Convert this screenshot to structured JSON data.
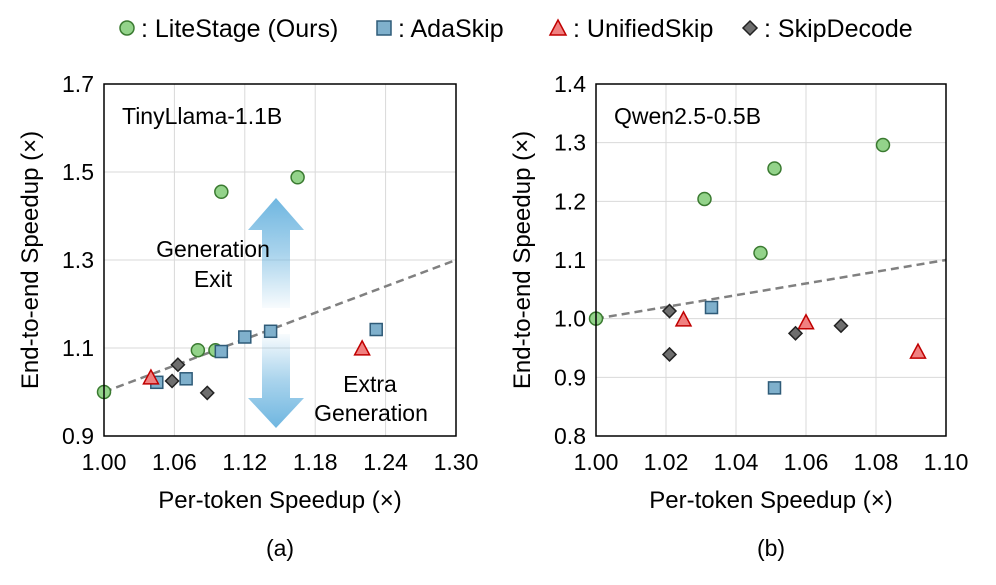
{
  "legend": {
    "items": [
      {
        "label": ": LiteStage (Ours)",
        "marker": "circle",
        "fill": "#93d38a",
        "stroke": "#3a7a30"
      },
      {
        "label": ": AdaSkip",
        "marker": "square",
        "fill": "#7fb0cc",
        "stroke": "#2f5b78"
      },
      {
        "label": ": UnifiedSkip",
        "marker": "triangle",
        "fill": "#f08080",
        "stroke": "#c00000"
      },
      {
        "label": ": SkipDecode",
        "marker": "diamond",
        "fill": "#6e6e6e",
        "stroke": "#222222"
      }
    ]
  },
  "colors": {
    "grid": "#d9d9d9",
    "trend": "#808080",
    "arrow": "#6fb6e0"
  },
  "chart_data": [
    {
      "type": "scatter",
      "panel_label": "(a)",
      "model_label": "TinyLlama-1.1B",
      "xlabel": "Per-token Speedup (×)",
      "ylabel": "End-to-end Speedup (×)",
      "xlim": [
        1.0,
        1.3
      ],
      "ylim": [
        0.9,
        1.7
      ],
      "xticks": [
        "1.00",
        "1.06",
        "1.12",
        "1.18",
        "1.24",
        "1.30"
      ],
      "yticks": [
        "0.9",
        "1.1",
        "1.3",
        "1.5",
        "1.7"
      ],
      "trend_line": {
        "x": [
          1.0,
          1.3
        ],
        "y": [
          1.0,
          1.3
        ]
      },
      "annotations": {
        "up_label": [
          "Generation",
          "Exit"
        ],
        "down_label": [
          "Extra",
          "Generation"
        ]
      },
      "series": [
        {
          "name": "LiteStage (Ours)",
          "x": [
            1.0,
            1.08,
            1.095,
            1.1,
            1.165
          ],
          "y": [
            1.0,
            1.095,
            1.095,
            1.455,
            1.488
          ]
        },
        {
          "name": "AdaSkip",
          "x": [
            1.045,
            1.07,
            1.1,
            1.12,
            1.142,
            1.232
          ],
          "y": [
            1.022,
            1.03,
            1.092,
            1.125,
            1.138,
            1.142
          ]
        },
        {
          "name": "UnifiedSkip",
          "x": [
            1.04,
            1.22
          ],
          "y": [
            1.032,
            1.098
          ]
        },
        {
          "name": "SkipDecode",
          "x": [
            1.058,
            1.063,
            1.088
          ],
          "y": [
            1.025,
            1.062,
            0.998
          ]
        }
      ]
    },
    {
      "type": "scatter",
      "panel_label": "(b)",
      "model_label": "Qwen2.5-0.5B",
      "xlabel": "Per-token Speedup (×)",
      "ylabel": "End-to-end Speedup (×)",
      "xlim": [
        1.0,
        1.1
      ],
      "ylim": [
        0.8,
        1.4
      ],
      "xticks": [
        "1.00",
        "1.02",
        "1.04",
        "1.06",
        "1.08",
        "1.10"
      ],
      "yticks": [
        "0.8",
        "0.9",
        "1.0",
        "1.1",
        "1.2",
        "1.3",
        "1.4"
      ],
      "trend_line": {
        "x": [
          1.0,
          1.1
        ],
        "y": [
          1.0,
          1.1
        ]
      },
      "series": [
        {
          "name": "LiteStage (Ours)",
          "x": [
            1.0,
            1.031,
            1.047,
            1.051,
            1.082
          ],
          "y": [
            1.0,
            1.204,
            1.112,
            1.256,
            1.296
          ]
        },
        {
          "name": "AdaSkip",
          "x": [
            1.033,
            1.051
          ],
          "y": [
            1.019,
            0.882
          ]
        },
        {
          "name": "UnifiedSkip",
          "x": [
            1.025,
            1.06,
            1.092
          ],
          "y": [
            0.998,
            0.993,
            0.943
          ]
        },
        {
          "name": "SkipDecode",
          "x": [
            1.021,
            1.021,
            1.057,
            1.07
          ],
          "y": [
            1.013,
            0.939,
            0.975,
            0.988
          ]
        }
      ]
    }
  ]
}
